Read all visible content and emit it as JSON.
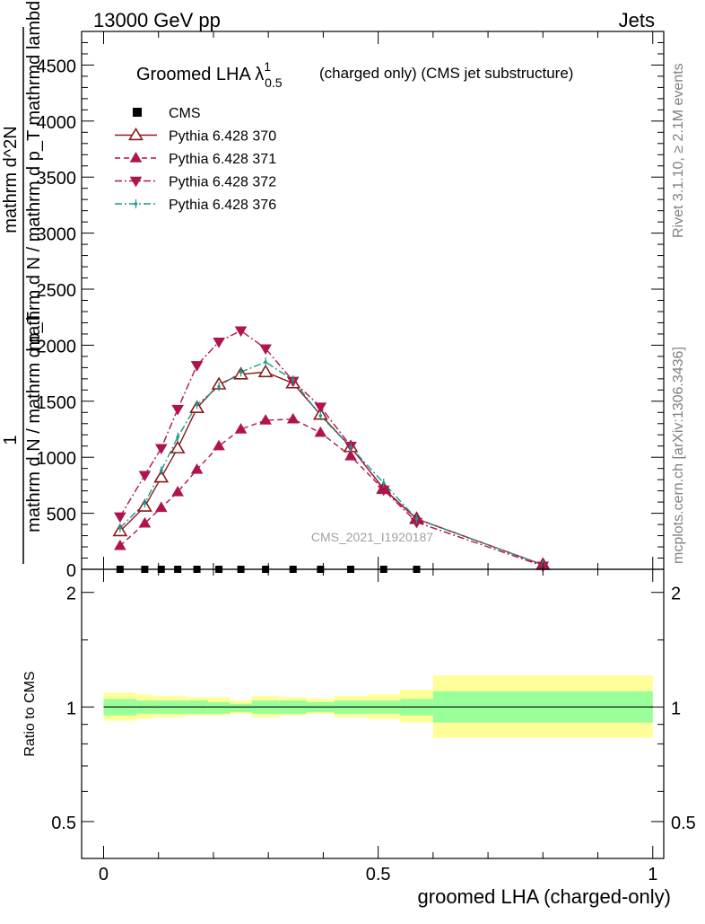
{
  "header": {
    "left": "13000 GeV pp",
    "right": "Jets"
  },
  "side_text": {
    "rivet": "Rivet 3.1.10, ≥ 2.1M events",
    "mcplots": "mcplots.cern.ch [arXiv:1306.3436]"
  },
  "chart_data": [
    {
      "type": "line",
      "panel": "main",
      "title": "Groomed LHA λ",
      "title_sup": "1",
      "title_sub": "0.5",
      "title_rest": "(charged only) (CMS jet substructure)",
      "watermark": "CMS_2021_I1920187",
      "ylabel_numerator": "1",
      "ylabel_mid": "mathrm d N / mathrm d p_T",
      "ylabel_denominator": "mathrm d N / mathrm d p_T mathrmd lambda",
      "ylabel_top": "mathrm d^2N",
      "xlim": [
        -0.04,
        1.02
      ],
      "ylim": [
        0,
        4800
      ],
      "yticks": [
        0,
        500,
        1000,
        1500,
        2000,
        2500,
        3000,
        3500,
        4000,
        4500
      ],
      "ytick_labels": [
        "0",
        "500",
        "1000",
        "1500",
        "2000",
        "2500",
        "3000",
        "3500",
        "4000",
        "4500"
      ],
      "legend_position": "top-left",
      "cms": {
        "name": "CMS",
        "x": [
          0.03,
          0.075,
          0.105,
          0.135,
          0.17,
          0.21,
          0.25,
          0.295,
          0.345,
          0.395,
          0.45,
          0.51,
          0.57
        ],
        "y": [
          0,
          0,
          0,
          0,
          0,
          0,
          0,
          0,
          0,
          0,
          0,
          0,
          0
        ]
      },
      "series": [
        {
          "name": "Pythia 6.428 370",
          "color": "#8b1a1a",
          "marker": "open-triangle-up",
          "dash": "solid",
          "x": [
            0.03,
            0.075,
            0.105,
            0.135,
            0.17,
            0.21,
            0.25,
            0.295,
            0.345,
            0.395,
            0.45,
            0.51,
            0.57,
            0.8
          ],
          "y": [
            340,
            560,
            820,
            1080,
            1440,
            1650,
            1740,
            1760,
            1660,
            1380,
            1090,
            720,
            450,
            40
          ]
        },
        {
          "name": "Pythia 6.428 371",
          "color": "#b0144f",
          "marker": "filled-triangle-up",
          "dash": "dashed",
          "x": [
            0.03,
            0.075,
            0.105,
            0.135,
            0.17,
            0.21,
            0.25,
            0.295,
            0.345,
            0.395,
            0.45,
            0.51,
            0.57,
            0.8
          ],
          "y": [
            210,
            410,
            550,
            690,
            890,
            1100,
            1250,
            1330,
            1340,
            1220,
            1010,
            710,
            450,
            40
          ]
        },
        {
          "name": "Pythia 6.428 372",
          "color": "#b0144f",
          "marker": "filled-triangle-down",
          "dash": "dashdot",
          "x": [
            0.03,
            0.075,
            0.105,
            0.135,
            0.17,
            0.21,
            0.25,
            0.295,
            0.345,
            0.395,
            0.45,
            0.51,
            0.57,
            0.8
          ],
          "y": [
            470,
            840,
            1080,
            1430,
            1820,
            2030,
            2130,
            1970,
            1680,
            1450,
            1100,
            710,
            420,
            30
          ]
        },
        {
          "name": "Pythia 6.428 376",
          "color": "#1a9a8a",
          "marker": "small-dot",
          "dash": "dashdot",
          "x": [
            0.03,
            0.075,
            0.105,
            0.135,
            0.17,
            0.21,
            0.25,
            0.295,
            0.345,
            0.395,
            0.45,
            0.51,
            0.57,
            0.8
          ],
          "y": [
            370,
            590,
            880,
            1180,
            1470,
            1630,
            1760,
            1850,
            1690,
            1370,
            1090,
            770,
            450,
            40
          ]
        }
      ]
    },
    {
      "type": "area",
      "panel": "ratio",
      "ylabel": "Ratio to CMS",
      "xlabel": "groomed LHA (charged-only)",
      "xlim": [
        -0.04,
        1.02
      ],
      "ylim": [
        0.4,
        2.3
      ],
      "log_scale": true,
      "yticks": [
        0.5,
        1,
        2
      ],
      "ytick_labels": [
        "0.5",
        "1",
        "2"
      ],
      "xticks": [
        0,
        0.5,
        1
      ],
      "xtick_labels": [
        "0",
        "0.5",
        "1"
      ],
      "reference_line": 1,
      "bins": [
        {
          "lo": 0.0,
          "hi": 0.06,
          "inner": [
            0.95,
            1.05
          ],
          "outer": [
            0.92,
            1.09
          ]
        },
        {
          "lo": 0.06,
          "hi": 0.09,
          "inner": [
            0.96,
            1.04
          ],
          "outer": [
            0.93,
            1.08
          ]
        },
        {
          "lo": 0.09,
          "hi": 0.12,
          "inner": [
            0.96,
            1.04
          ],
          "outer": [
            0.94,
            1.07
          ]
        },
        {
          "lo": 0.12,
          "hi": 0.15,
          "inner": [
            0.96,
            1.04
          ],
          "outer": [
            0.94,
            1.07
          ]
        },
        {
          "lo": 0.15,
          "hi": 0.19,
          "inner": [
            0.96,
            1.04
          ],
          "outer": [
            0.95,
            1.06
          ]
        },
        {
          "lo": 0.19,
          "hi": 0.23,
          "inner": [
            0.96,
            1.03
          ],
          "outer": [
            0.95,
            1.06
          ]
        },
        {
          "lo": 0.23,
          "hi": 0.27,
          "inner": [
            0.97,
            1.02
          ],
          "outer": [
            0.96,
            1.04
          ]
        },
        {
          "lo": 0.27,
          "hi": 0.32,
          "inner": [
            0.96,
            1.04
          ],
          "outer": [
            0.94,
            1.07
          ]
        },
        {
          "lo": 0.32,
          "hi": 0.37,
          "inner": [
            0.96,
            1.04
          ],
          "outer": [
            0.95,
            1.06
          ]
        },
        {
          "lo": 0.37,
          "hi": 0.42,
          "inner": [
            0.97,
            1.03
          ],
          "outer": [
            0.96,
            1.05
          ]
        },
        {
          "lo": 0.42,
          "hi": 0.48,
          "inner": [
            0.96,
            1.04
          ],
          "outer": [
            0.94,
            1.07
          ]
        },
        {
          "lo": 0.48,
          "hi": 0.54,
          "inner": [
            0.96,
            1.04
          ],
          "outer": [
            0.93,
            1.08
          ]
        },
        {
          "lo": 0.54,
          "hi": 0.6,
          "inner": [
            0.95,
            1.05
          ],
          "outer": [
            0.91,
            1.11
          ]
        },
        {
          "lo": 0.6,
          "hi": 1.0,
          "inner": [
            0.91,
            1.1
          ],
          "outer": [
            0.83,
            1.21
          ]
        }
      ]
    }
  ]
}
